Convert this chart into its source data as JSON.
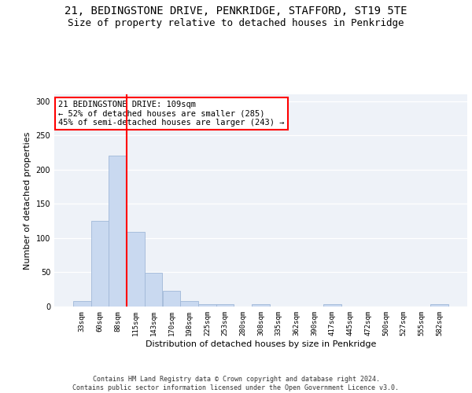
{
  "title": "21, BEDINGSTONE DRIVE, PENKRIDGE, STAFFORD, ST19 5TE",
  "subtitle": "Size of property relative to detached houses in Penkridge",
  "xlabel": "Distribution of detached houses by size in Penkridge",
  "ylabel": "Number of detached properties",
  "bar_labels": [
    "33sqm",
    "60sqm",
    "88sqm",
    "115sqm",
    "143sqm",
    "170sqm",
    "198sqm",
    "225sqm",
    "253sqm",
    "280sqm",
    "308sqm",
    "335sqm",
    "362sqm",
    "390sqm",
    "417sqm",
    "445sqm",
    "472sqm",
    "500sqm",
    "527sqm",
    "555sqm",
    "582sqm"
  ],
  "bar_values": [
    8,
    125,
    220,
    109,
    49,
    23,
    8,
    3,
    4,
    0,
    4,
    0,
    0,
    0,
    3,
    0,
    0,
    0,
    0,
    0,
    3
  ],
  "bar_color": "#c9d9f0",
  "bar_edgecolor": "#a0b8d8",
  "vline_x": 2.5,
  "vline_color": "red",
  "annotation_text": "21 BEDINGSTONE DRIVE: 109sqm\n← 52% of detached houses are smaller (285)\n45% of semi-detached houses are larger (243) →",
  "annotation_box_color": "white",
  "annotation_box_edgecolor": "red",
  "ylim": [
    0,
    310
  ],
  "yticks": [
    0,
    50,
    100,
    150,
    200,
    250,
    300
  ],
  "background_color": "#eef2f8",
  "footer_text": "Contains HM Land Registry data © Crown copyright and database right 2024.\nContains public sector information licensed under the Open Government Licence v3.0.",
  "title_fontsize": 10,
  "subtitle_fontsize": 9,
  "xlabel_fontsize": 8,
  "ylabel_fontsize": 8,
  "annotation_fontsize": 7.5,
  "tick_fontsize": 6.5,
  "footer_fontsize": 6
}
